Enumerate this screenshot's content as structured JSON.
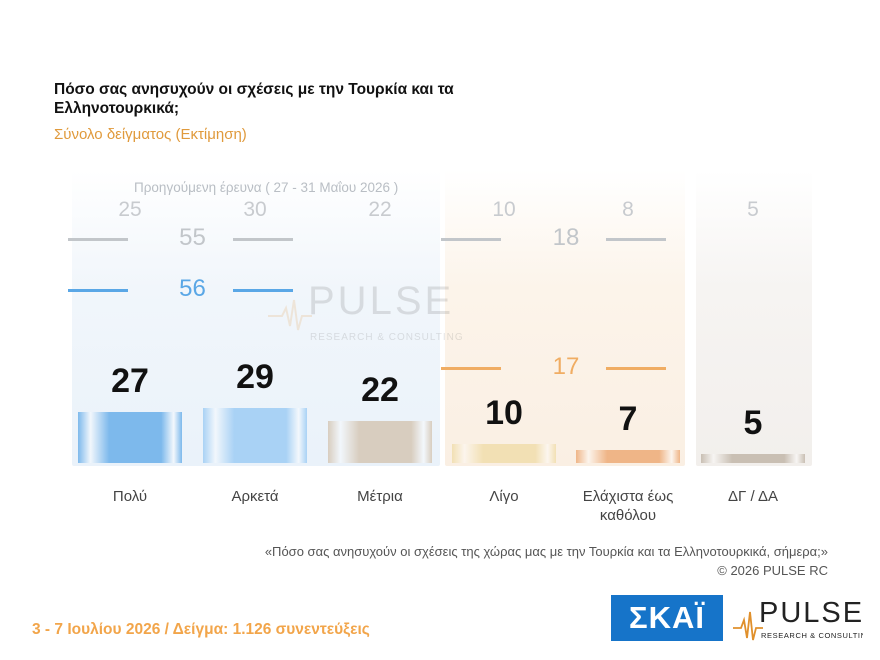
{
  "header": {
    "title": "Πόσο σας ανησυχούν οι σχέσεις με την Τουρκία και τα Ελληνοτουρκικά;",
    "subtitle": "Σύνολο δείγματος (Εκτίμηση)"
  },
  "chart_data": {
    "type": "bar",
    "categories": [
      "Πολύ",
      "Αρκετά",
      "Μέτρια",
      "Λίγο",
      "Ελάχιστα έως καθόλου",
      "ΔΓ / ΔΑ"
    ],
    "series": [
      {
        "name": "",
        "values": [
          27,
          29,
          22,
          10,
          7,
          5
        ]
      },
      {
        "name": "Προηγούμενη έρευνα ( 27 - 31 Μαΐου 2026 )",
        "values": [
          25,
          30,
          22,
          10,
          8,
          5
        ]
      }
    ],
    "groups": [
      {
        "current": 56,
        "previous": 55
      },
      {
        "current": 17,
        "previous": 18
      }
    ],
    "previous_label": "Προηγούμενη έρευνα ( 27 - 31 Μαΐου 2026 )",
    "bar_colors": [
      "#7db9ec",
      "#a9d2f5",
      "#d8cdbf",
      "#f2e0b4",
      "#efb587",
      "#c9bfb3"
    ],
    "ylim": [
      0,
      60
    ],
    "grid": false
  },
  "watermark": {
    "name": "PULSE",
    "tagline": "RESEARCH & CONSULTING"
  },
  "quote": "«Πόσο σας ανησυχούν οι σχέσεις της χώρας μας με την Τουρκία και τα Ελληνοτουρκικά, σήμερα;»",
  "copyright": "© 2026 PULSE RC",
  "footer": "3 - 7 Ιουλίου 2026 / Δείγμα: 1.126 συνεντεύξεις",
  "logos": {
    "skai": "ΣΚΑΪ",
    "pulse": "PULSE",
    "pulse_tagline": "RESEARCH & CONSULTING"
  }
}
